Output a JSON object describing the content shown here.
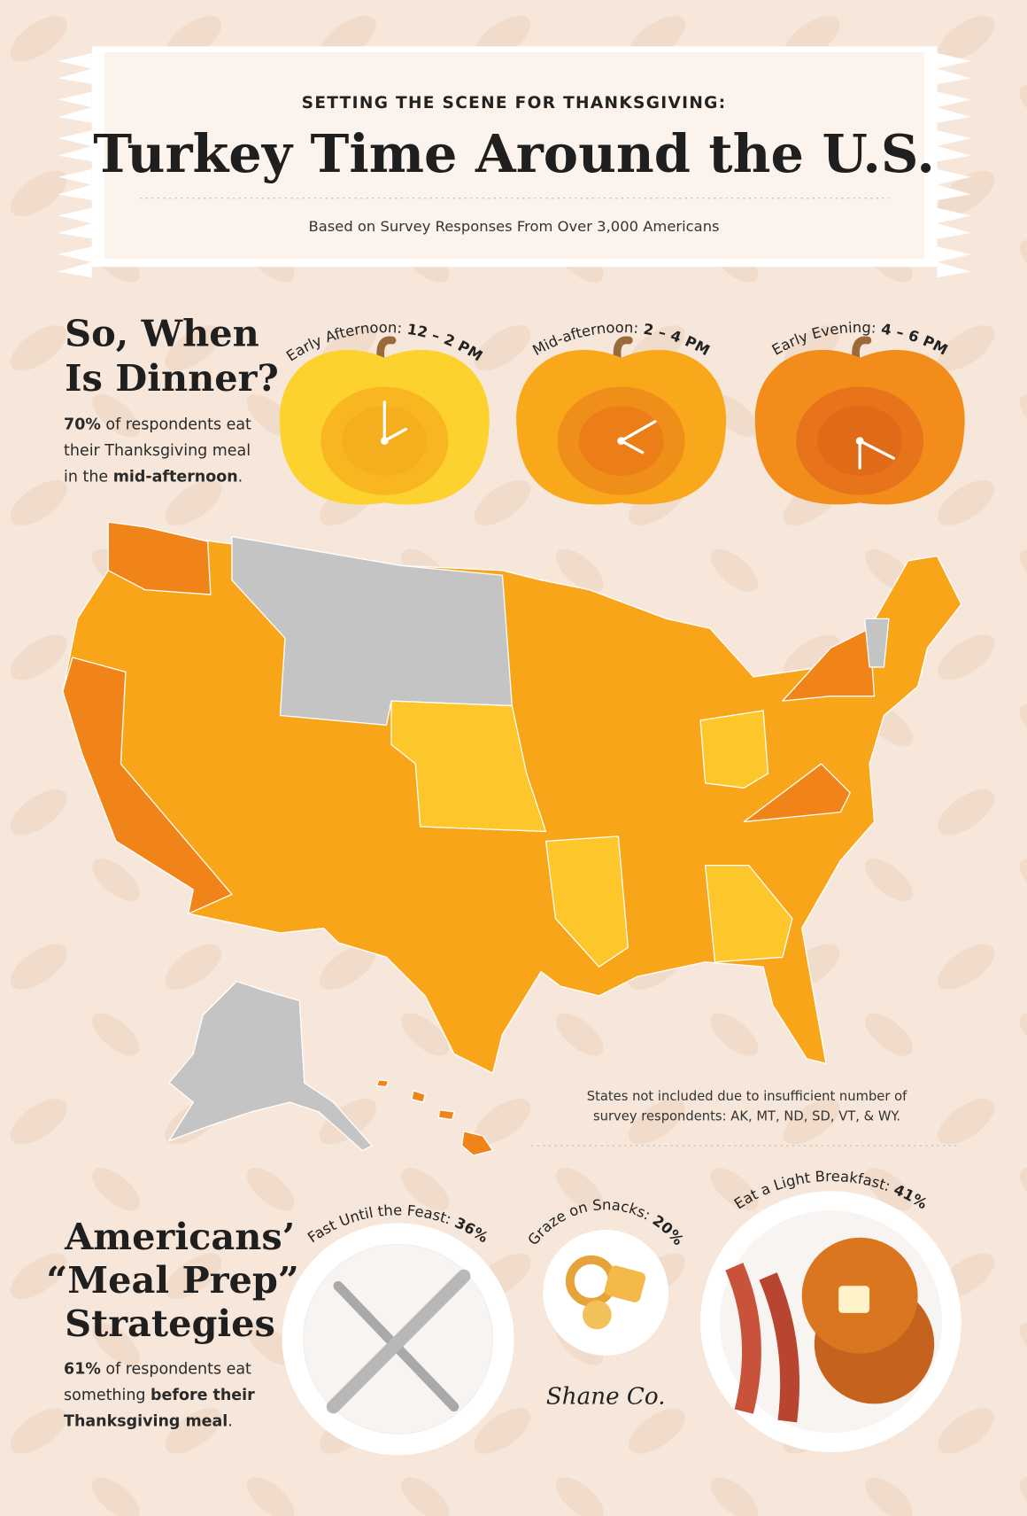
{
  "header": {
    "kicker": "SETTING THE SCENE FOR THANKSGIVING:",
    "title": "Turkey Time Around the U.S.",
    "subtitle": "Based on Survey Responses From Over 3,000 Americans"
  },
  "dinner": {
    "heading": [
      "So, When",
      "Is Dinner?"
    ],
    "text": [
      "70%",
      " of respondents eat their Thanksgiving meal in the ",
      "mid-afternoon",
      "."
    ],
    "times": [
      {
        "label": "Early Afternoon:",
        "range": "12 – 2 PM"
      },
      {
        "label": "Mid-afternoon:",
        "range": "2 – 4 PM"
      },
      {
        "label": "Early Evening:",
        "range": "4 – 6 PM"
      }
    ]
  },
  "map": {
    "note": "States not included due to insufficient number of survey respondents: AK, MT, ND, SD, VT, & WY."
  },
  "prep": {
    "heading": [
      "Americans’",
      "“Meal Prep”",
      "Strategies"
    ],
    "text": [
      "61%",
      " of respondents eat something ",
      "before their Thanksgiving meal",
      "."
    ],
    "strategies": [
      {
        "label": "Fast Until the Feast:",
        "value": "36%"
      },
      {
        "label": "Graze on Snacks:",
        "value": "20%"
      },
      {
        "label": "Eat a Light Breakfast:",
        "value": "41%"
      }
    ]
  },
  "brand": "Shane Co."
}
